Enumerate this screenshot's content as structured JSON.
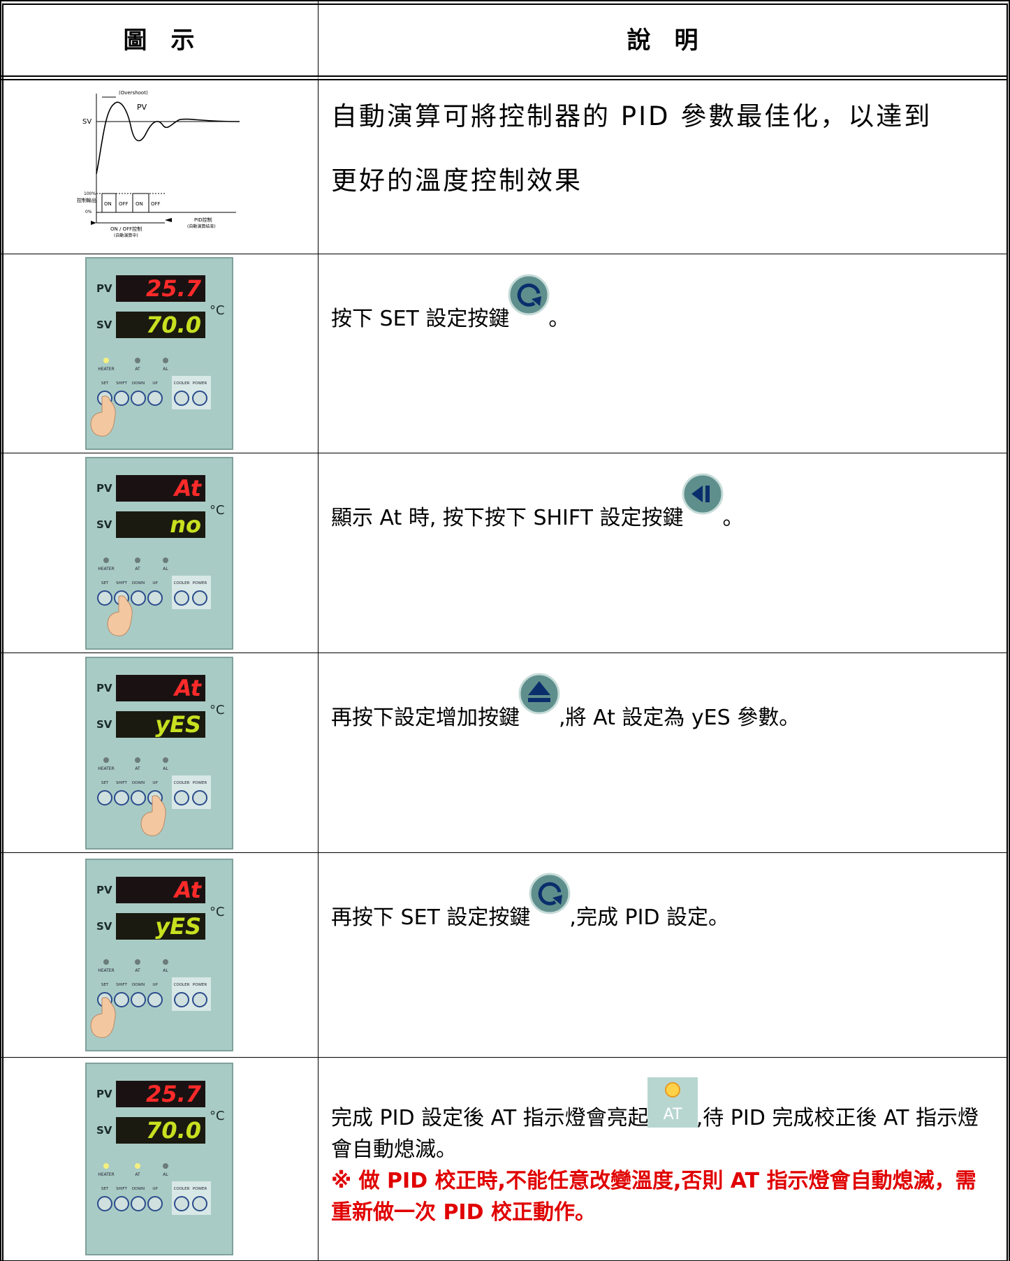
{
  "header": {
    "figure": "圖　示",
    "description": "說　明"
  },
  "graph": {
    "overshoot": "(Overshoot)",
    "pv": "PV",
    "sv": "SV",
    "output_axis": "控制輸出",
    "high": "100%",
    "low": "0%",
    "states": [
      "ON",
      "OFF",
      "ON",
      "OFF"
    ],
    "onoff": "ON / OFF控制",
    "onoff_note": "(自動演算中)",
    "pid": "PID控制",
    "pid_note": "(自動演算結束)"
  },
  "intro": [
    "自動演算可將控制器的 PID 參數最佳化，以達到",
    "更好的溫度控制效果"
  ],
  "panel": {
    "pv_label": "PV",
    "sv_label": "SV",
    "unit": "°C",
    "leds": [
      "HEATER",
      "AT",
      "AL"
    ],
    "buttons": [
      "SET",
      "SHIFT",
      "DOWN",
      "UP",
      "COOLER",
      "POWER"
    ]
  },
  "rows": [
    {
      "pv": "25.7",
      "sv": "70.0",
      "text_before": "按下 SET 設定按鍵",
      "text_after": "。"
    },
    {
      "pv": "At",
      "sv": "no",
      "text_before": "顯示 At 時, 按下按下 SHIFT 設定按鍵",
      "text_after": "。"
    },
    {
      "pv": "At",
      "sv": "yES",
      "text_before": "再按下設定增加按鍵",
      "text_after": ",將 At 設定為 yES  參數。"
    },
    {
      "pv": "At",
      "sv": "yES",
      "text_before": "再按下 SET 設定按鍵",
      "text_after": ",完成 PID 設定。"
    },
    {
      "pv": "25.7",
      "sv": "70.0",
      "text_before": "完成 PID 設定後 AT 指示燈會亮起",
      "icon_label": "AT",
      "text_after": ",待 PID 完成校正後 AT 指示燈會自動熄滅。",
      "note": "※ 做 PID 校正時,不能任意改變溫度,否則 AT 指示燈會自動熄滅，需重新做一次 PID 校正動作。"
    }
  ]
}
